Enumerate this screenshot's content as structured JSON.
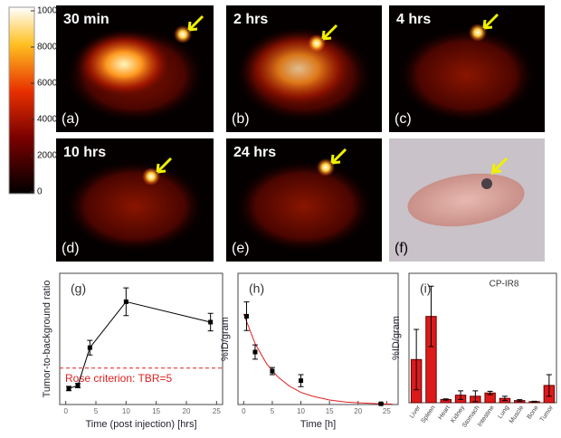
{
  "colorbar": {
    "lim": [
      0,
      10000
    ],
    "ticks": [
      0,
      2000,
      4000,
      6000,
      8000,
      10000
    ]
  },
  "panels": [
    {
      "time": "30 min",
      "letter": "(a)"
    },
    {
      "time": "2 hrs",
      "letter": "(b)"
    },
    {
      "time": "4 hrs",
      "letter": "(c)"
    },
    {
      "time": "10 hrs",
      "letter": "(d)"
    },
    {
      "time": "24 hrs",
      "letter": "(e)"
    },
    {
      "letter": "(f)"
    }
  ],
  "chart_data": [
    {
      "type": "line",
      "label": "(g)",
      "x_label": "Time (post injection) [hrs]",
      "y_label": "Tumor-to-background ratio",
      "x": [
        0.5,
        2,
        4,
        10,
        24
      ],
      "values": [
        2.2,
        2.6,
        7.8,
        14.1,
        11.3
      ],
      "errors": [
        0.3,
        0.3,
        1.0,
        1.9,
        1.2
      ],
      "color": "#000000",
      "xlim": [
        -1,
        26
      ],
      "ylim": [
        0,
        18
      ],
      "xticks": [
        0,
        5,
        10,
        15,
        20,
        25
      ],
      "threshold": {
        "value": 5,
        "label": "Rose criterion: TBR=5",
        "color": "#e02020"
      }
    },
    {
      "type": "scatter",
      "label": "(h)",
      "x_label": "Time [h]",
      "y_label": "%ID/gram",
      "x": [
        0.5,
        2,
        5,
        10,
        24
      ],
      "values": [
        37,
        22,
        14,
        10,
        0.3
      ],
      "errors": [
        6,
        3,
        1.5,
        2.5,
        0.3
      ],
      "color": "#000000",
      "xlim": [
        -1,
        27
      ],
      "ylim": [
        0,
        55
      ],
      "xticks": [
        0,
        5,
        10,
        15,
        20,
        25
      ],
      "fit": {
        "color": "#e02020",
        "x": [
          0,
          2,
          4,
          6,
          8,
          10,
          12,
          15,
          18,
          21,
          24,
          26
        ],
        "values": [
          38,
          25.5,
          17.1,
          11.5,
          7.7,
          5.1,
          3.5,
          1.9,
          1.0,
          0.6,
          0.3,
          0.2
        ]
      }
    },
    {
      "type": "bar",
      "label": "(i)",
      "title": "CP-IR8",
      "y_label": "%ID/gram",
      "categories": [
        "Liver",
        "Spleen",
        "Heart",
        "Kidney",
        "Stomach",
        "Intestine",
        "Lung",
        "Muscle",
        "Bone",
        "Tumor"
      ],
      "values": [
        20,
        40,
        1.5,
        3.5,
        3,
        4.5,
        2,
        1,
        0.5,
        8
      ],
      "errors": [
        14,
        14,
        0.3,
        2,
        2.5,
        0.8,
        1,
        0.4,
        0.2,
        5
      ],
      "color": "#dd1a1a",
      "ylim": [
        0,
        60
      ]
    }
  ]
}
